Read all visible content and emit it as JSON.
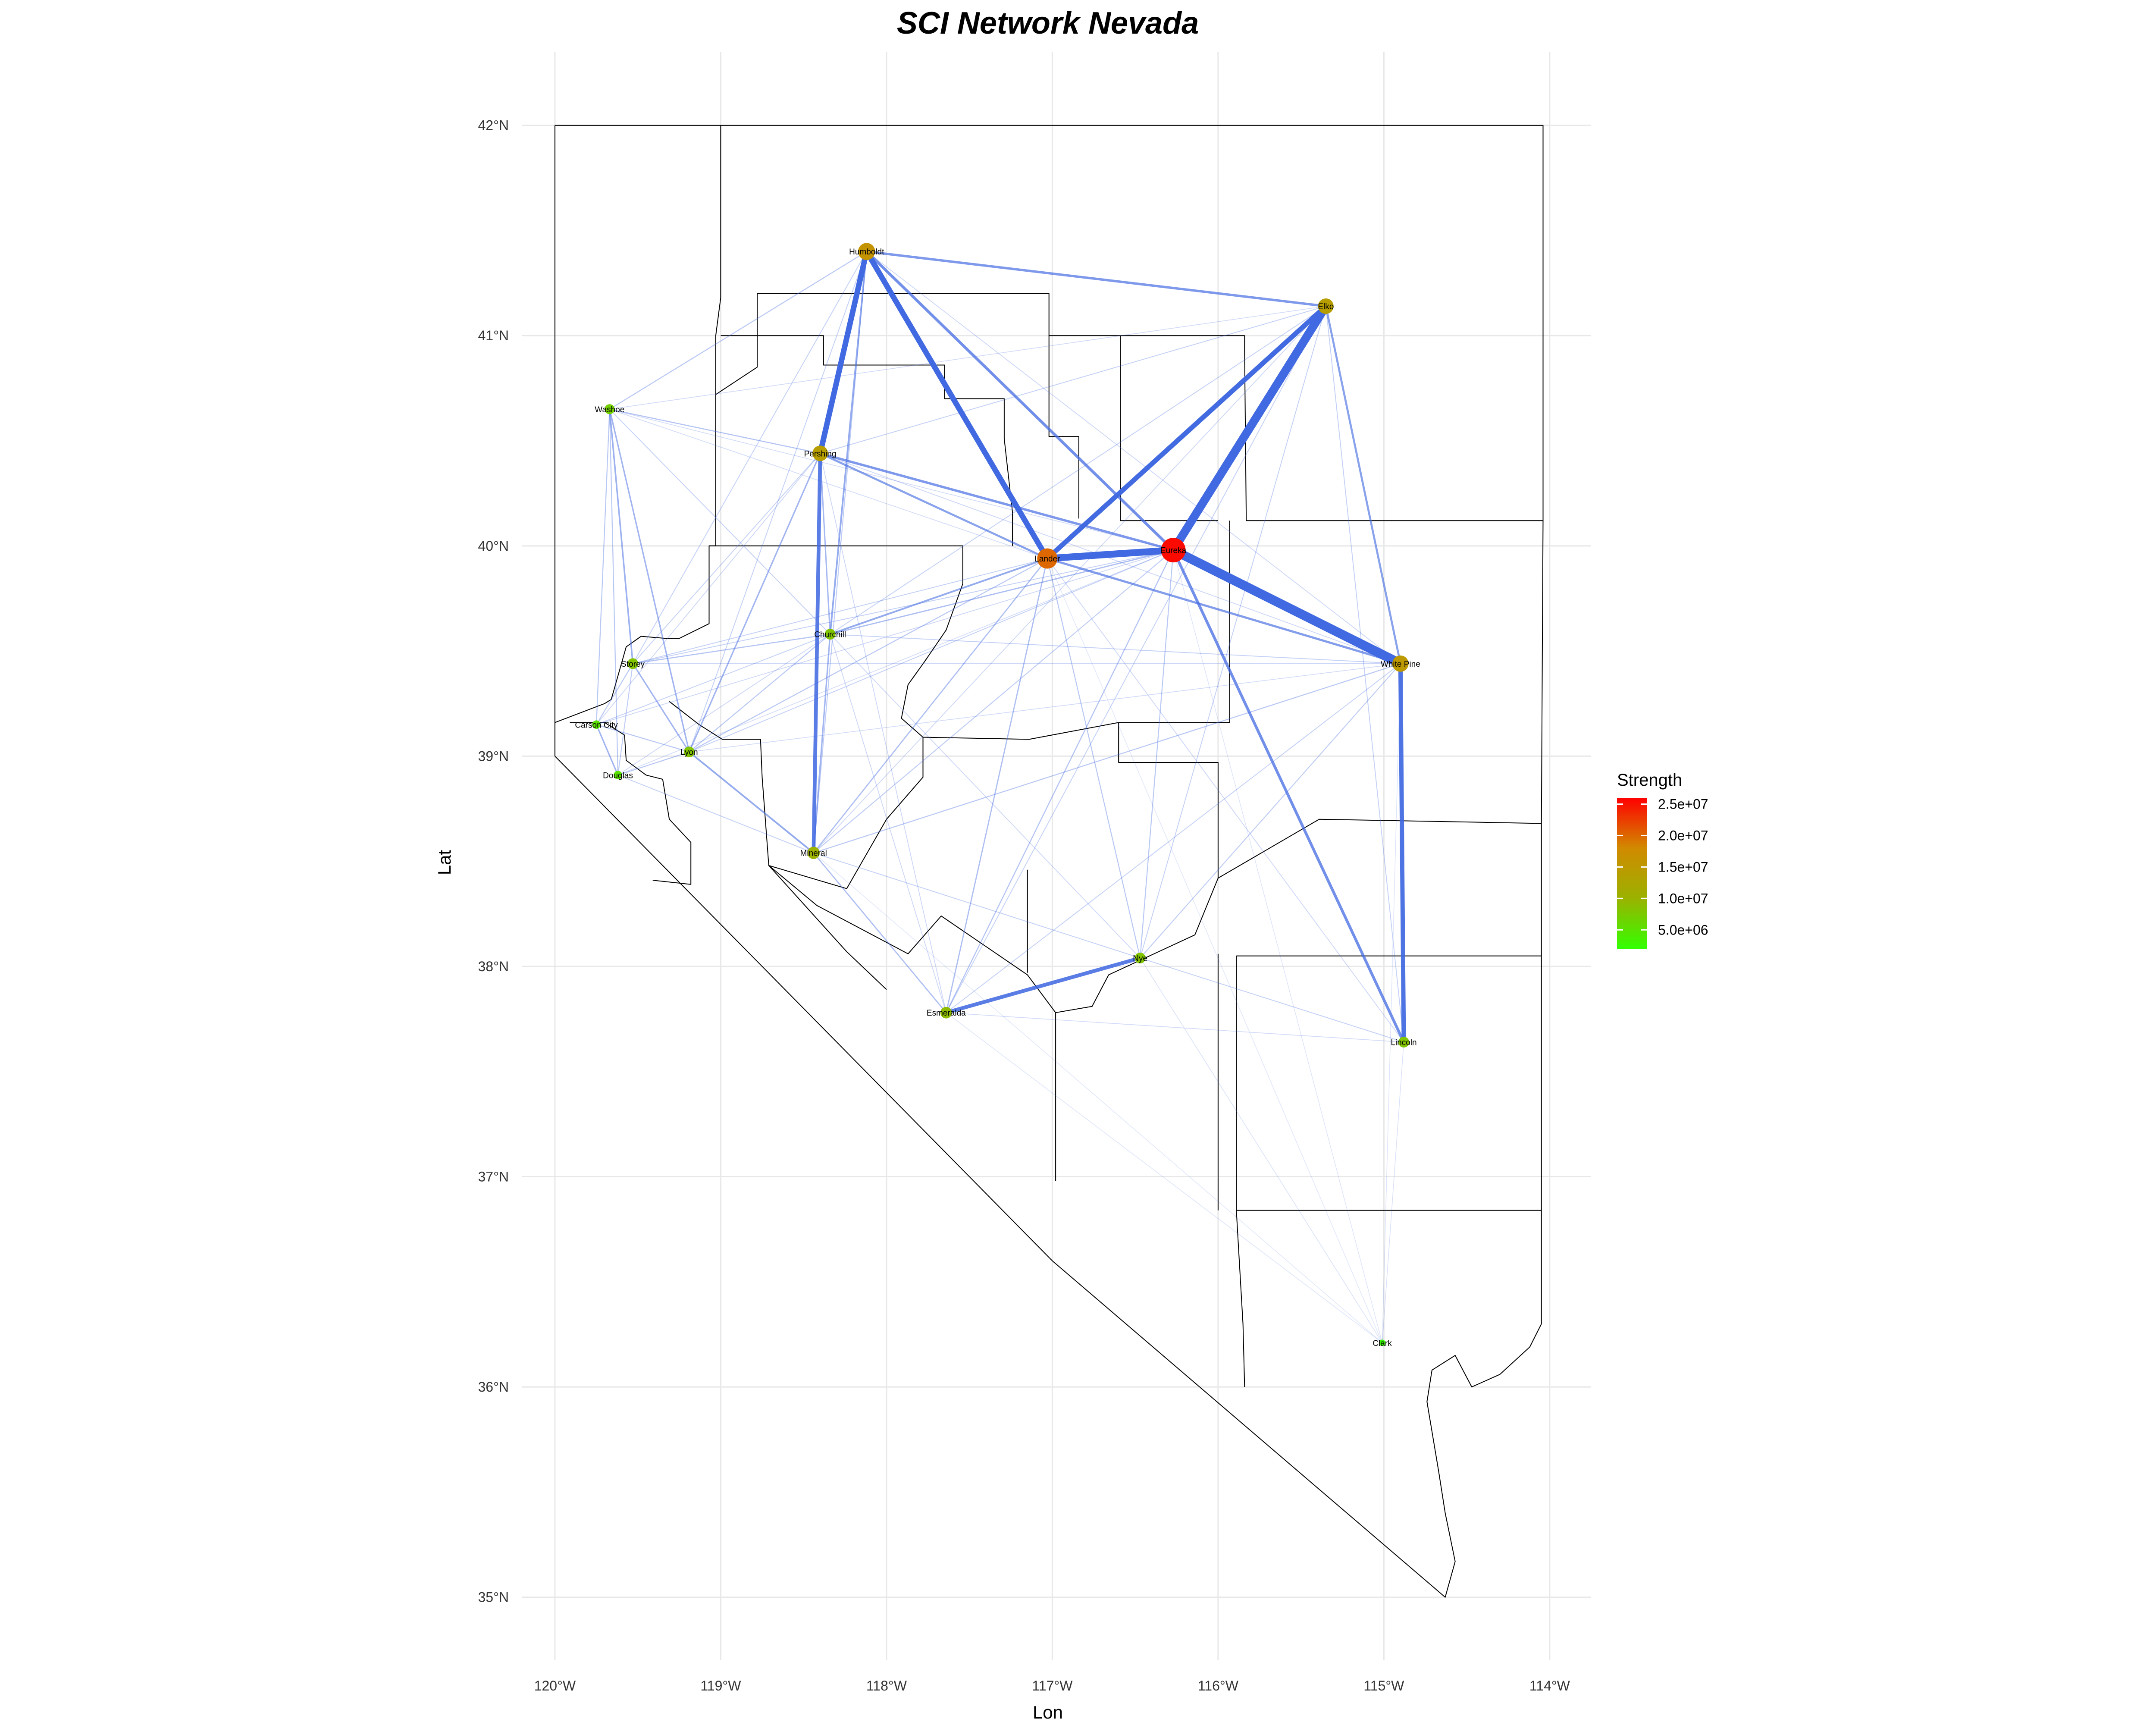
{
  "title": "SCI Network Nevada",
  "xlabel": "Lon",
  "ylabel": "Lat",
  "chart_data": {
    "type": "network-map",
    "x_ticks": [
      {
        "value": -120,
        "label": "120°W"
      },
      {
        "value": -119,
        "label": "119°W"
      },
      {
        "value": -118,
        "label": "118°W"
      },
      {
        "value": -117,
        "label": "117°W"
      },
      {
        "value": -116,
        "label": "116°W"
      },
      {
        "value": -115,
        "label": "115°W"
      },
      {
        "value": -114,
        "label": "114°W"
      }
    ],
    "y_ticks": [
      {
        "value": 35,
        "label": "35°N"
      },
      {
        "value": 36,
        "label": "36°N"
      },
      {
        "value": 37,
        "label": "37°N"
      },
      {
        "value": 38,
        "label": "38°N"
      },
      {
        "value": 39,
        "label": "39°N"
      },
      {
        "value": 40,
        "label": "40°N"
      },
      {
        "value": 41,
        "label": "41°N"
      },
      {
        "value": 42,
        "label": "42°N"
      }
    ],
    "xlim": [
      -120.2,
      -113.75
    ],
    "ylim": [
      34.7,
      42.35
    ],
    "legend": {
      "title": "Strength",
      "min": 2000000,
      "max": 26000000,
      "ticks": [
        {
          "value": 25000000,
          "label": "2.5e+07"
        },
        {
          "value": 20000000,
          "label": "2.0e+07"
        },
        {
          "value": 15000000,
          "label": "1.5e+07"
        },
        {
          "value": 10000000,
          "label": "1.0e+07"
        },
        {
          "value": 5000000,
          "label": "5.0e+06"
        }
      ],
      "colors": [
        "#33ff00",
        "#9bb200",
        "#d18a00",
        "#ff0000"
      ]
    },
    "nodes": [
      {
        "name": "Humboldt",
        "lon": -118.12,
        "lat": 41.4,
        "strength": 16000000
      },
      {
        "name": "Elko",
        "lon": -115.35,
        "lat": 41.14,
        "strength": 14000000
      },
      {
        "name": "Washoe",
        "lon": -119.67,
        "lat": 40.65,
        "strength": 7000000
      },
      {
        "name": "Pershing",
        "lon": -118.4,
        "lat": 40.44,
        "strength": 14000000
      },
      {
        "name": "Lander",
        "lon": -117.03,
        "lat": 39.94,
        "strength": 20000000
      },
      {
        "name": "Eureka",
        "lon": -116.27,
        "lat": 39.98,
        "strength": 25500000
      },
      {
        "name": "Churchill",
        "lon": -118.34,
        "lat": 39.58,
        "strength": 8000000
      },
      {
        "name": "White Pine",
        "lon": -114.9,
        "lat": 39.44,
        "strength": 15000000
      },
      {
        "name": "Storey",
        "lon": -119.53,
        "lat": 39.44,
        "strength": 8000000
      },
      {
        "name": "Carson City",
        "lon": -119.75,
        "lat": 39.15,
        "strength": 5000000
      },
      {
        "name": "Lyon",
        "lon": -119.19,
        "lat": 39.02,
        "strength": 8000000
      },
      {
        "name": "Douglas",
        "lon": -119.62,
        "lat": 38.91,
        "strength": 5000000
      },
      {
        "name": "Mineral",
        "lon": -118.44,
        "lat": 38.54,
        "strength": 10000000
      },
      {
        "name": "Nye",
        "lon": -116.47,
        "lat": 38.04,
        "strength": 8000000
      },
      {
        "name": "Esmeralda",
        "lon": -117.64,
        "lat": 37.78,
        "strength": 9000000
      },
      {
        "name": "Lincoln",
        "lon": -114.88,
        "lat": 37.64,
        "strength": 8000000
      },
      {
        "name": "Clark",
        "lon": -115.01,
        "lat": 36.21,
        "strength": 2500000
      }
    ],
    "edges": [
      {
        "from": "Eureka",
        "to": "White Pine",
        "weight": 1.0
      },
      {
        "from": "Eureka",
        "to": "Elko",
        "weight": 0.95
      },
      {
        "from": "Eureka",
        "to": "Lander",
        "weight": 0.85
      },
      {
        "from": "Humboldt",
        "to": "Lander",
        "weight": 0.75
      },
      {
        "from": "Humboldt",
        "to": "Pershing",
        "weight": 0.75
      },
      {
        "from": "Lander",
        "to": "Elko",
        "weight": 0.7
      },
      {
        "from": "Pershing",
        "to": "Mineral",
        "weight": 0.6
      },
      {
        "from": "White Pine",
        "to": "Lincoln",
        "weight": 0.65
      },
      {
        "from": "Nye",
        "to": "Esmeralda",
        "weight": 0.6
      },
      {
        "from": "Humboldt",
        "to": "Eureka",
        "weight": 0.5
      },
      {
        "from": "Humboldt",
        "to": "Elko",
        "weight": 0.45
      },
      {
        "from": "Eureka",
        "to": "Lincoln",
        "weight": 0.5
      },
      {
        "from": "Pershing",
        "to": "Eureka",
        "weight": 0.45
      },
      {
        "from": "Pershing",
        "to": "Lander",
        "weight": 0.4
      },
      {
        "from": "Elko",
        "to": "White Pine",
        "weight": 0.4
      },
      {
        "from": "Lander",
        "to": "White Pine",
        "weight": 0.42
      },
      {
        "from": "Lander",
        "to": "Churchill",
        "weight": 0.35
      },
      {
        "from": "Humboldt",
        "to": "Churchill",
        "weight": 0.35
      },
      {
        "from": "Washoe",
        "to": "Storey",
        "weight": 0.32
      },
      {
        "from": "Washoe",
        "to": "Lyon",
        "weight": 0.3
      },
      {
        "from": "Pershing",
        "to": "Lyon",
        "weight": 0.3
      },
      {
        "from": "Lyon",
        "to": "Mineral",
        "weight": 0.35
      },
      {
        "from": "Churchill",
        "to": "Mineral",
        "weight": 0.3
      },
      {
        "from": "Storey",
        "to": "Lyon",
        "weight": 0.3
      },
      {
        "from": "Douglas",
        "to": "Carson City",
        "weight": 0.3
      },
      {
        "from": "Humboldt",
        "to": "Washoe",
        "weight": 0.2
      },
      {
        "from": "Lander",
        "to": "Esmeralda",
        "weight": 0.25
      },
      {
        "from": "Eureka",
        "to": "Esmeralda",
        "weight": 0.22
      },
      {
        "from": "Lander",
        "to": "Mineral",
        "weight": 0.25
      },
      {
        "from": "Eureka",
        "to": "Churchill",
        "weight": 0.25
      },
      {
        "from": "Pershing",
        "to": "Churchill",
        "weight": 0.28
      },
      {
        "from": "Pershing",
        "to": "Washoe",
        "weight": 0.22
      },
      {
        "from": "Storey",
        "to": "Churchill",
        "weight": 0.22
      },
      {
        "from": "Mineral",
        "to": "Esmeralda",
        "weight": 0.25
      },
      {
        "from": "Mineral",
        "to": "White Pine",
        "weight": 0.2
      },
      {
        "from": "Lyon",
        "to": "Lander",
        "weight": 0.2
      },
      {
        "from": "Nye",
        "to": "Lander",
        "weight": 0.2
      },
      {
        "from": "Nye",
        "to": "Eureka",
        "weight": 0.2
      },
      {
        "from": "Nye",
        "to": "Lincoln",
        "weight": 0.15
      },
      {
        "from": "Nye",
        "to": "White Pine",
        "weight": 0.18
      },
      {
        "from": "Esmeralda",
        "to": "White Pine",
        "weight": 0.15
      },
      {
        "from": "Esmeralda",
        "to": "Elko",
        "weight": 0.15
      },
      {
        "from": "Elko",
        "to": "Nye",
        "weight": 0.15
      },
      {
        "from": "Elko",
        "to": "Lincoln",
        "weight": 0.15
      },
      {
        "from": "Elko",
        "to": "Pershing",
        "weight": 0.15
      },
      {
        "from": "Elko",
        "to": "Churchill",
        "weight": 0.15
      },
      {
        "from": "Elko",
        "to": "Washoe",
        "weight": 0.1
      },
      {
        "from": "Humboldt",
        "to": "Mineral",
        "weight": 0.18
      },
      {
        "from": "Humboldt",
        "to": "Storey",
        "weight": 0.15
      },
      {
        "from": "Humboldt",
        "to": "Lyon",
        "weight": 0.15
      },
      {
        "from": "Humboldt",
        "to": "White Pine",
        "weight": 0.12
      },
      {
        "from": "Washoe",
        "to": "Carson City",
        "weight": 0.2
      },
      {
        "from": "Washoe",
        "to": "Douglas",
        "weight": 0.2
      },
      {
        "from": "Washoe",
        "to": "Churchill",
        "weight": 0.15
      },
      {
        "from": "Washoe",
        "to": "Eureka",
        "weight": 0.1
      },
      {
        "from": "Storey",
        "to": "Carson City",
        "weight": 0.2
      },
      {
        "from": "Storey",
        "to": "Douglas",
        "weight": 0.18
      },
      {
        "from": "Storey",
        "to": "Eureka",
        "weight": 0.15
      },
      {
        "from": "Storey",
        "to": "Lander",
        "weight": 0.15
      },
      {
        "from": "Storey",
        "to": "White Pine",
        "weight": 0.12
      },
      {
        "from": "Carson City",
        "to": "Lyon",
        "weight": 0.2
      },
      {
        "from": "Carson City",
        "to": "Churchill",
        "weight": 0.15
      },
      {
        "from": "Carson City",
        "to": "Eureka",
        "weight": 0.12
      },
      {
        "from": "Carson City",
        "to": "Pershing",
        "weight": 0.12
      },
      {
        "from": "Douglas",
        "to": "Lyon",
        "weight": 0.2
      },
      {
        "from": "Douglas",
        "to": "Mineral",
        "weight": 0.15
      },
      {
        "from": "Douglas",
        "to": "Churchill",
        "weight": 0.12
      },
      {
        "from": "Douglas",
        "to": "Eureka",
        "weight": 0.1
      },
      {
        "from": "Lyon",
        "to": "Eureka",
        "weight": 0.15
      },
      {
        "from": "Lyon",
        "to": "Churchill",
        "weight": 0.2
      },
      {
        "from": "Lyon",
        "to": "White Pine",
        "weight": 0.1
      },
      {
        "from": "Churchill",
        "to": "White Pine",
        "weight": 0.15
      },
      {
        "from": "Churchill",
        "to": "Esmeralda",
        "weight": 0.12
      },
      {
        "from": "Churchill",
        "to": "Nye",
        "weight": 0.12
      },
      {
        "from": "Mineral",
        "to": "Eureka",
        "weight": 0.18
      },
      {
        "from": "Mineral",
        "to": "Nye",
        "weight": 0.15
      },
      {
        "from": "Mineral",
        "to": "Elko",
        "weight": 0.12
      },
      {
        "from": "Pershing",
        "to": "White Pine",
        "weight": 0.12
      },
      {
        "from": "Pershing",
        "to": "Storey",
        "weight": 0.15
      },
      {
        "from": "Pershing",
        "to": "Esmeralda",
        "weight": 0.12
      },
      {
        "from": "Lander",
        "to": "Lincoln",
        "weight": 0.12
      },
      {
        "from": "Lander",
        "to": "Washoe",
        "weight": 0.1
      },
      {
        "from": "Esmeralda",
        "to": "Lincoln",
        "weight": 0.1
      },
      {
        "from": "Clark",
        "to": "Nye",
        "weight": 0.06
      },
      {
        "from": "Clark",
        "to": "Lincoln",
        "weight": 0.06
      },
      {
        "from": "Clark",
        "to": "Esmeralda",
        "weight": 0.05
      },
      {
        "from": "Clark",
        "to": "Eureka",
        "weight": 0.05
      },
      {
        "from": "Clark",
        "to": "Mineral",
        "weight": 0.04
      },
      {
        "from": "Clark",
        "to": "Lander",
        "weight": 0.04
      },
      {
        "from": "Clark",
        "to": "White Pine",
        "weight": 0.05
      }
    ]
  }
}
